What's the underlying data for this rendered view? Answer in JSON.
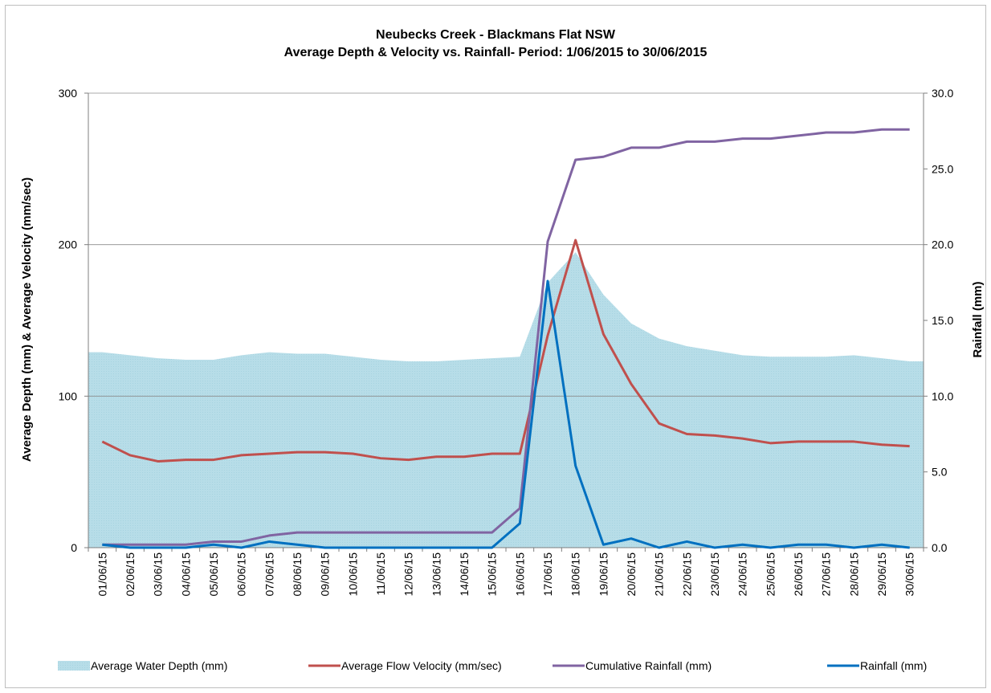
{
  "chart_data": {
    "type": "line",
    "title": "Neubecks Creek - Blackmans Flat NSW",
    "subtitle": "Average Depth & Velocity  vs. Rainfall- Period:  1/06/2015 to 30/06/2015",
    "ylabel_left": "Average Depth (mm) & Average Velocity (mm/sec)",
    "ylabel_right": "Rainfall (mm)",
    "xlabel": "",
    "ylim_left": [
      0,
      300
    ],
    "ylim_right": [
      0,
      30
    ],
    "yticks_left": [
      "0",
      "100",
      "200",
      "300"
    ],
    "yticks_right": [
      "0.0",
      "5.0",
      "10.0",
      "15.0",
      "20.0",
      "25.0",
      "30.0"
    ],
    "gridlines": "horizontal major, left axis",
    "legend_position": "bottom",
    "categories": [
      "01/06/15",
      "02/06/15",
      "03/06/15",
      "04/06/15",
      "05/06/15",
      "06/06/15",
      "07/06/15",
      "08/06/15",
      "09/06/15",
      "10/06/15",
      "11/06/15",
      "12/06/15",
      "13/06/15",
      "14/06/15",
      "15/06/15",
      "16/06/15",
      "17/06/15",
      "18/06/15",
      "19/06/15",
      "20/06/15",
      "21/06/15",
      "22/06/15",
      "23/06/15",
      "24/06/15",
      "25/06/15",
      "26/06/15",
      "27/06/15",
      "28/06/15",
      "29/06/15",
      "30/06/15"
    ],
    "series": [
      {
        "name": "Average Water Depth (mm)",
        "type": "area",
        "axis": "left",
        "color": "#b7dde8",
        "values": [
          129,
          127,
          125,
          124,
          124,
          127,
          129,
          128,
          128,
          126,
          124,
          123,
          123,
          124,
          125,
          126,
          175,
          195,
          167,
          148,
          138,
          133,
          130,
          127,
          126,
          126,
          126,
          127,
          125,
          123
        ]
      },
      {
        "name": "Average Flow Velocity (mm/sec)",
        "type": "line",
        "axis": "left",
        "color": "#c0504d",
        "values": [
          70,
          61,
          57,
          58,
          58,
          61,
          62,
          63,
          63,
          62,
          59,
          58,
          60,
          60,
          62,
          62,
          140,
          203,
          141,
          108,
          82,
          75,
          74,
          72,
          69,
          70,
          70,
          70,
          68,
          67
        ]
      },
      {
        "name": "Cumulative Rainfall (mm)",
        "type": "line",
        "axis": "right",
        "color": "#8064a2",
        "values": [
          0.2,
          0.2,
          0.2,
          0.2,
          0.4,
          0.4,
          0.8,
          1.0,
          1.0,
          1.0,
          1.0,
          1.0,
          1.0,
          1.0,
          1.0,
          2.6,
          20.2,
          25.6,
          25.8,
          26.4,
          26.4,
          26.8,
          26.8,
          27.0,
          27.0,
          27.2,
          27.4,
          27.4,
          27.6,
          27.6
        ]
      },
      {
        "name": "Rainfall (mm)",
        "type": "line",
        "axis": "right",
        "color": "#0070c0",
        "values": [
          0.2,
          0,
          0,
          0,
          0.2,
          0,
          0.4,
          0.2,
          0,
          0,
          0,
          0,
          0,
          0,
          0,
          1.6,
          17.6,
          5.4,
          0.2,
          0.6,
          0,
          0.4,
          0,
          0.2,
          0,
          0.2,
          0.2,
          0,
          0.2,
          0
        ]
      }
    ]
  }
}
